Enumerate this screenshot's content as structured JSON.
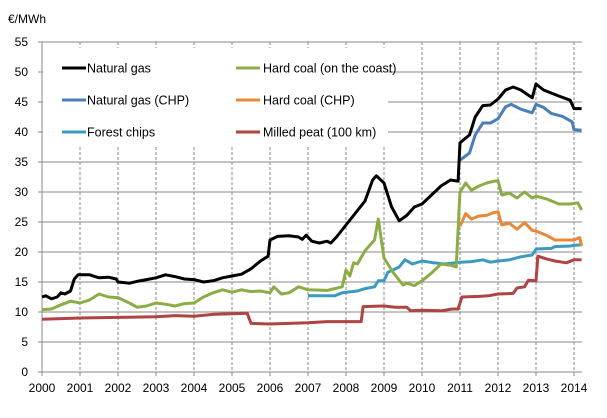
{
  "chart_data": {
    "type": "line",
    "ylabel": "€/MWh",
    "xlim": [
      2000,
      2014.21
    ],
    "ylim": [
      0,
      55
    ],
    "y_ticks": [
      0,
      5,
      10,
      15,
      20,
      25,
      30,
      35,
      40,
      45,
      50,
      55
    ],
    "x_ticks": [
      "2000",
      "2001",
      "2002",
      "2003",
      "2004",
      "2005",
      "2006",
      "2007",
      "2008",
      "2009",
      "2010",
      "2011",
      "2012",
      "2013",
      "2014"
    ],
    "grid": "horizontal solid, vertical dashed",
    "legend_placement": "top-left",
    "series": [
      {
        "name": "Natural gas",
        "color": "#000000",
        "points": [
          [
            2000,
            12.5
          ],
          [
            2000.1,
            12.7
          ],
          [
            2000.25,
            12.2
          ],
          [
            2000.4,
            12.5
          ],
          [
            2000.5,
            13.2
          ],
          [
            2000.6,
            13.0
          ],
          [
            2000.75,
            13.5
          ],
          [
            2000.85,
            15.5
          ],
          [
            2000.95,
            16.2
          ],
          [
            2001.25,
            16.2
          ],
          [
            2001.5,
            15.7
          ],
          [
            2001.75,
            15.8
          ],
          [
            2001.95,
            15.5
          ],
          [
            2002.0,
            15.0
          ],
          [
            2002.3,
            14.8
          ],
          [
            2002.5,
            15.1
          ],
          [
            2002.75,
            15.4
          ],
          [
            2003.0,
            15.7
          ],
          [
            2003.25,
            16.2
          ],
          [
            2003.5,
            15.9
          ],
          [
            2003.75,
            15.5
          ],
          [
            2004.0,
            15.4
          ],
          [
            2004.25,
            15.0
          ],
          [
            2004.5,
            15.2
          ],
          [
            2004.75,
            15.7
          ],
          [
            2005.0,
            16.0
          ],
          [
            2005.25,
            16.3
          ],
          [
            2005.5,
            17.2
          ],
          [
            2005.75,
            18.5
          ],
          [
            2005.95,
            19.3
          ],
          [
            2006.0,
            22.0
          ],
          [
            2006.2,
            22.6
          ],
          [
            2006.5,
            22.7
          ],
          [
            2006.75,
            22.5
          ],
          [
            2006.85,
            22.1
          ],
          [
            2006.95,
            22.8
          ],
          [
            2007.1,
            21.8
          ],
          [
            2007.3,
            21.5
          ],
          [
            2007.5,
            21.8
          ],
          [
            2007.6,
            21.5
          ],
          [
            2007.75,
            22.5
          ],
          [
            2008.0,
            24.5
          ],
          [
            2008.25,
            26.5
          ],
          [
            2008.5,
            28.5
          ],
          [
            2008.7,
            32.0
          ],
          [
            2008.8,
            32.7
          ],
          [
            2009.0,
            31.5
          ],
          [
            2009.2,
            27.5
          ],
          [
            2009.4,
            25.2
          ],
          [
            2009.6,
            26.1
          ],
          [
            2009.8,
            27.5
          ],
          [
            2010.0,
            28.0
          ],
          [
            2010.25,
            29.5
          ],
          [
            2010.5,
            31.0
          ],
          [
            2010.75,
            32.0
          ],
          [
            2010.95,
            31.8
          ],
          [
            2011.0,
            38.2
          ],
          [
            2011.15,
            39.0
          ],
          [
            2011.25,
            39.5
          ],
          [
            2011.4,
            42.5
          ],
          [
            2011.6,
            44.4
          ],
          [
            2011.8,
            44.5
          ],
          [
            2012.0,
            45.5
          ],
          [
            2012.2,
            47.0
          ],
          [
            2012.4,
            47.5
          ],
          [
            2012.6,
            47.0
          ],
          [
            2012.9,
            45.7
          ],
          [
            2013.0,
            48.0
          ],
          [
            2013.2,
            47.0
          ],
          [
            2013.4,
            46.5
          ],
          [
            2013.6,
            46.0
          ],
          [
            2013.9,
            45.3
          ],
          [
            2014.0,
            43.9
          ],
          [
            2014.2,
            43.9
          ]
        ]
      },
      {
        "name": "Natural gas (CHP)",
        "color": "#4a7ebb",
        "points": [
          [
            2011.0,
            35.3
          ],
          [
            2011.25,
            36.5
          ],
          [
            2011.4,
            39.5
          ],
          [
            2011.6,
            41.5
          ],
          [
            2011.8,
            41.5
          ],
          [
            2012.0,
            42.2
          ],
          [
            2012.2,
            44.2
          ],
          [
            2012.35,
            44.6
          ],
          [
            2012.6,
            43.8
          ],
          [
            2012.9,
            43.2
          ],
          [
            2013.0,
            44.6
          ],
          [
            2013.2,
            44.1
          ],
          [
            2013.4,
            43.1
          ],
          [
            2013.7,
            42.6
          ],
          [
            2013.95,
            41.7
          ],
          [
            2014.0,
            40.4
          ],
          [
            2014.2,
            40.3
          ]
        ]
      },
      {
        "name": "Forest chips",
        "color": "#3a9ac0",
        "points": [
          [
            2007.0,
            12.7
          ],
          [
            2007.7,
            12.7
          ],
          [
            2007.9,
            13.2
          ],
          [
            2008.3,
            13.5
          ],
          [
            2008.5,
            13.9
          ],
          [
            2008.75,
            14.2
          ],
          [
            2008.85,
            15.2
          ],
          [
            2009.0,
            15.2
          ],
          [
            2009.1,
            16.6
          ],
          [
            2009.4,
            17.5
          ],
          [
            2009.55,
            18.7
          ],
          [
            2009.75,
            18.0
          ],
          [
            2010.0,
            18.5
          ],
          [
            2010.3,
            18.2
          ],
          [
            2010.6,
            18.0
          ],
          [
            2011.0,
            18.3
          ],
          [
            2011.3,
            18.4
          ],
          [
            2011.6,
            18.7
          ],
          [
            2011.8,
            18.3
          ],
          [
            2012.0,
            18.5
          ],
          [
            2012.3,
            18.7
          ],
          [
            2012.6,
            19.2
          ],
          [
            2012.9,
            19.5
          ],
          [
            2013.0,
            20.5
          ],
          [
            2013.4,
            20.6
          ],
          [
            2013.5,
            20.9
          ],
          [
            2013.9,
            21.0
          ],
          [
            2014.0,
            21.1
          ],
          [
            2014.2,
            21.2
          ]
        ]
      },
      {
        "name": "Hard coal (on the coast)",
        "color": "#8cac46",
        "points": [
          [
            2000,
            10.4
          ],
          [
            2000.25,
            10.5
          ],
          [
            2000.5,
            11.2
          ],
          [
            2000.75,
            11.8
          ],
          [
            2001.0,
            11.5
          ],
          [
            2001.25,
            12.0
          ],
          [
            2001.5,
            13.0
          ],
          [
            2001.75,
            12.5
          ],
          [
            2002.0,
            12.4
          ],
          [
            2002.3,
            11.5
          ],
          [
            2002.5,
            10.8
          ],
          [
            2002.75,
            11.0
          ],
          [
            2003.0,
            11.5
          ],
          [
            2003.25,
            11.3
          ],
          [
            2003.5,
            11.0
          ],
          [
            2003.75,
            11.4
          ],
          [
            2004.0,
            11.5
          ],
          [
            2004.25,
            12.5
          ],
          [
            2004.5,
            13.2
          ],
          [
            2004.75,
            13.7
          ],
          [
            2005.0,
            13.3
          ],
          [
            2005.25,
            13.7
          ],
          [
            2005.5,
            13.4
          ],
          [
            2005.75,
            13.5
          ],
          [
            2006.0,
            13.2
          ],
          [
            2006.1,
            14.2
          ],
          [
            2006.3,
            13.0
          ],
          [
            2006.5,
            13.2
          ],
          [
            2006.75,
            14.2
          ],
          [
            2007.0,
            13.7
          ],
          [
            2007.5,
            13.6
          ],
          [
            2007.9,
            14.2
          ],
          [
            2008.0,
            17.0
          ],
          [
            2008.1,
            16.0
          ],
          [
            2008.2,
            18.2
          ],
          [
            2008.3,
            18.0
          ],
          [
            2008.5,
            20.2
          ],
          [
            2008.75,
            22.0
          ],
          [
            2008.85,
            25.5
          ],
          [
            2009.0,
            19.0
          ],
          [
            2009.25,
            16.5
          ],
          [
            2009.5,
            14.5
          ],
          [
            2009.6,
            14.8
          ],
          [
            2009.8,
            14.4
          ],
          [
            2010.0,
            15.2
          ],
          [
            2010.25,
            16.5
          ],
          [
            2010.5,
            18.0
          ],
          [
            2010.75,
            17.8
          ],
          [
            2010.9,
            17.5
          ],
          [
            2011.0,
            30.0
          ],
          [
            2011.15,
            31.5
          ],
          [
            2011.3,
            30.3
          ],
          [
            2011.5,
            31.0
          ],
          [
            2011.7,
            31.5
          ],
          [
            2011.9,
            31.8
          ],
          [
            2012.0,
            31.9
          ],
          [
            2012.1,
            29.5
          ],
          [
            2012.3,
            29.8
          ],
          [
            2012.5,
            29.0
          ],
          [
            2012.7,
            30.0
          ],
          [
            2012.9,
            29.0
          ],
          [
            2013.0,
            29.3
          ],
          [
            2013.3,
            28.8
          ],
          [
            2013.6,
            28.0
          ],
          [
            2013.9,
            28.0
          ],
          [
            2014.1,
            28.2
          ],
          [
            2014.2,
            27.0
          ]
        ]
      },
      {
        "name": "Hard coal (CHP)",
        "color": "#e8893a",
        "points": [
          [
            2011.0,
            24.3
          ],
          [
            2011.15,
            26.4
          ],
          [
            2011.3,
            25.5
          ],
          [
            2011.5,
            26.0
          ],
          [
            2011.7,
            26.1
          ],
          [
            2011.9,
            26.6
          ],
          [
            2012.0,
            26.7
          ],
          [
            2012.1,
            24.5
          ],
          [
            2012.3,
            24.8
          ],
          [
            2012.5,
            23.8
          ],
          [
            2012.7,
            24.9
          ],
          [
            2012.9,
            23.6
          ],
          [
            2013.0,
            23.5
          ],
          [
            2013.3,
            22.7
          ],
          [
            2013.5,
            22.0
          ],
          [
            2013.8,
            22.0
          ],
          [
            2014.0,
            22.0
          ],
          [
            2014.15,
            22.4
          ],
          [
            2014.2,
            21.0
          ]
        ]
      },
      {
        "name": "Milled peat (100 km)",
        "color": "#b04343",
        "points": [
          [
            2000,
            8.8
          ],
          [
            2001,
            9.0
          ],
          [
            2002,
            9.1
          ],
          [
            2003,
            9.2
          ],
          [
            2003.5,
            9.4
          ],
          [
            2004,
            9.3
          ],
          [
            2004.5,
            9.6
          ],
          [
            2005,
            9.7
          ],
          [
            2005.4,
            9.8
          ],
          [
            2005.5,
            8.1
          ],
          [
            2006,
            8.0
          ],
          [
            2007,
            8.2
          ],
          [
            2007.5,
            8.4
          ],
          [
            2008,
            8.4
          ],
          [
            2008.4,
            8.4
          ],
          [
            2008.45,
            10.9
          ],
          [
            2009,
            11.0
          ],
          [
            2009.3,
            10.8
          ],
          [
            2009.6,
            10.8
          ],
          [
            2009.7,
            10.2
          ],
          [
            2010,
            10.3
          ],
          [
            2010.5,
            10.2
          ],
          [
            2010.8,
            10.5
          ],
          [
            2010.95,
            10.5
          ],
          [
            2011.05,
            12.5
          ],
          [
            2011.5,
            12.6
          ],
          [
            2011.75,
            12.7
          ],
          [
            2012,
            13.0
          ],
          [
            2012.4,
            13.1
          ],
          [
            2012.5,
            14.0
          ],
          [
            2012.7,
            14.2
          ],
          [
            2012.8,
            15.3
          ],
          [
            2013.0,
            15.2
          ],
          [
            2013.05,
            19.3
          ],
          [
            2013.3,
            18.8
          ],
          [
            2013.5,
            18.5
          ],
          [
            2013.8,
            18.2
          ],
          [
            2014.0,
            18.7
          ],
          [
            2014.2,
            18.7
          ]
        ]
      }
    ]
  }
}
